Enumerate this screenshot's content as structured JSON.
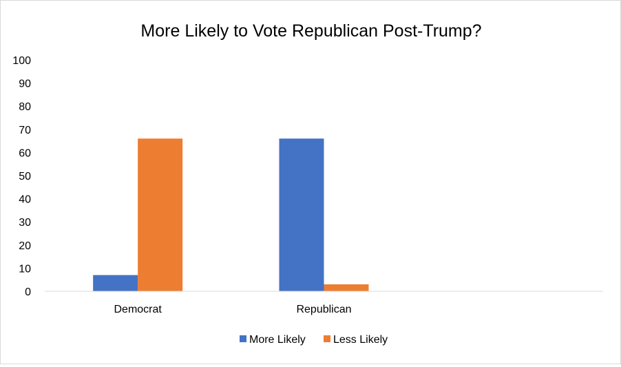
{
  "chart_data": {
    "type": "bar",
    "title": "More Likely to Vote Republican Post-Trump?",
    "xlabel": "",
    "ylabel": "",
    "categories": [
      "Democrat",
      "Republican",
      ""
    ],
    "series": [
      {
        "name": "More Likely",
        "color": "#4472C4",
        "values": [
          7,
          66,
          null
        ]
      },
      {
        "name": "Less Likely",
        "color": "#ED7D31",
        "values": [
          66,
          3,
          null
        ]
      }
    ],
    "ylim": [
      0,
      100
    ],
    "yticks": [
      0,
      10,
      20,
      30,
      40,
      50,
      60,
      70,
      80,
      90,
      100
    ],
    "grid": false,
    "legend_position": "bottom"
  }
}
